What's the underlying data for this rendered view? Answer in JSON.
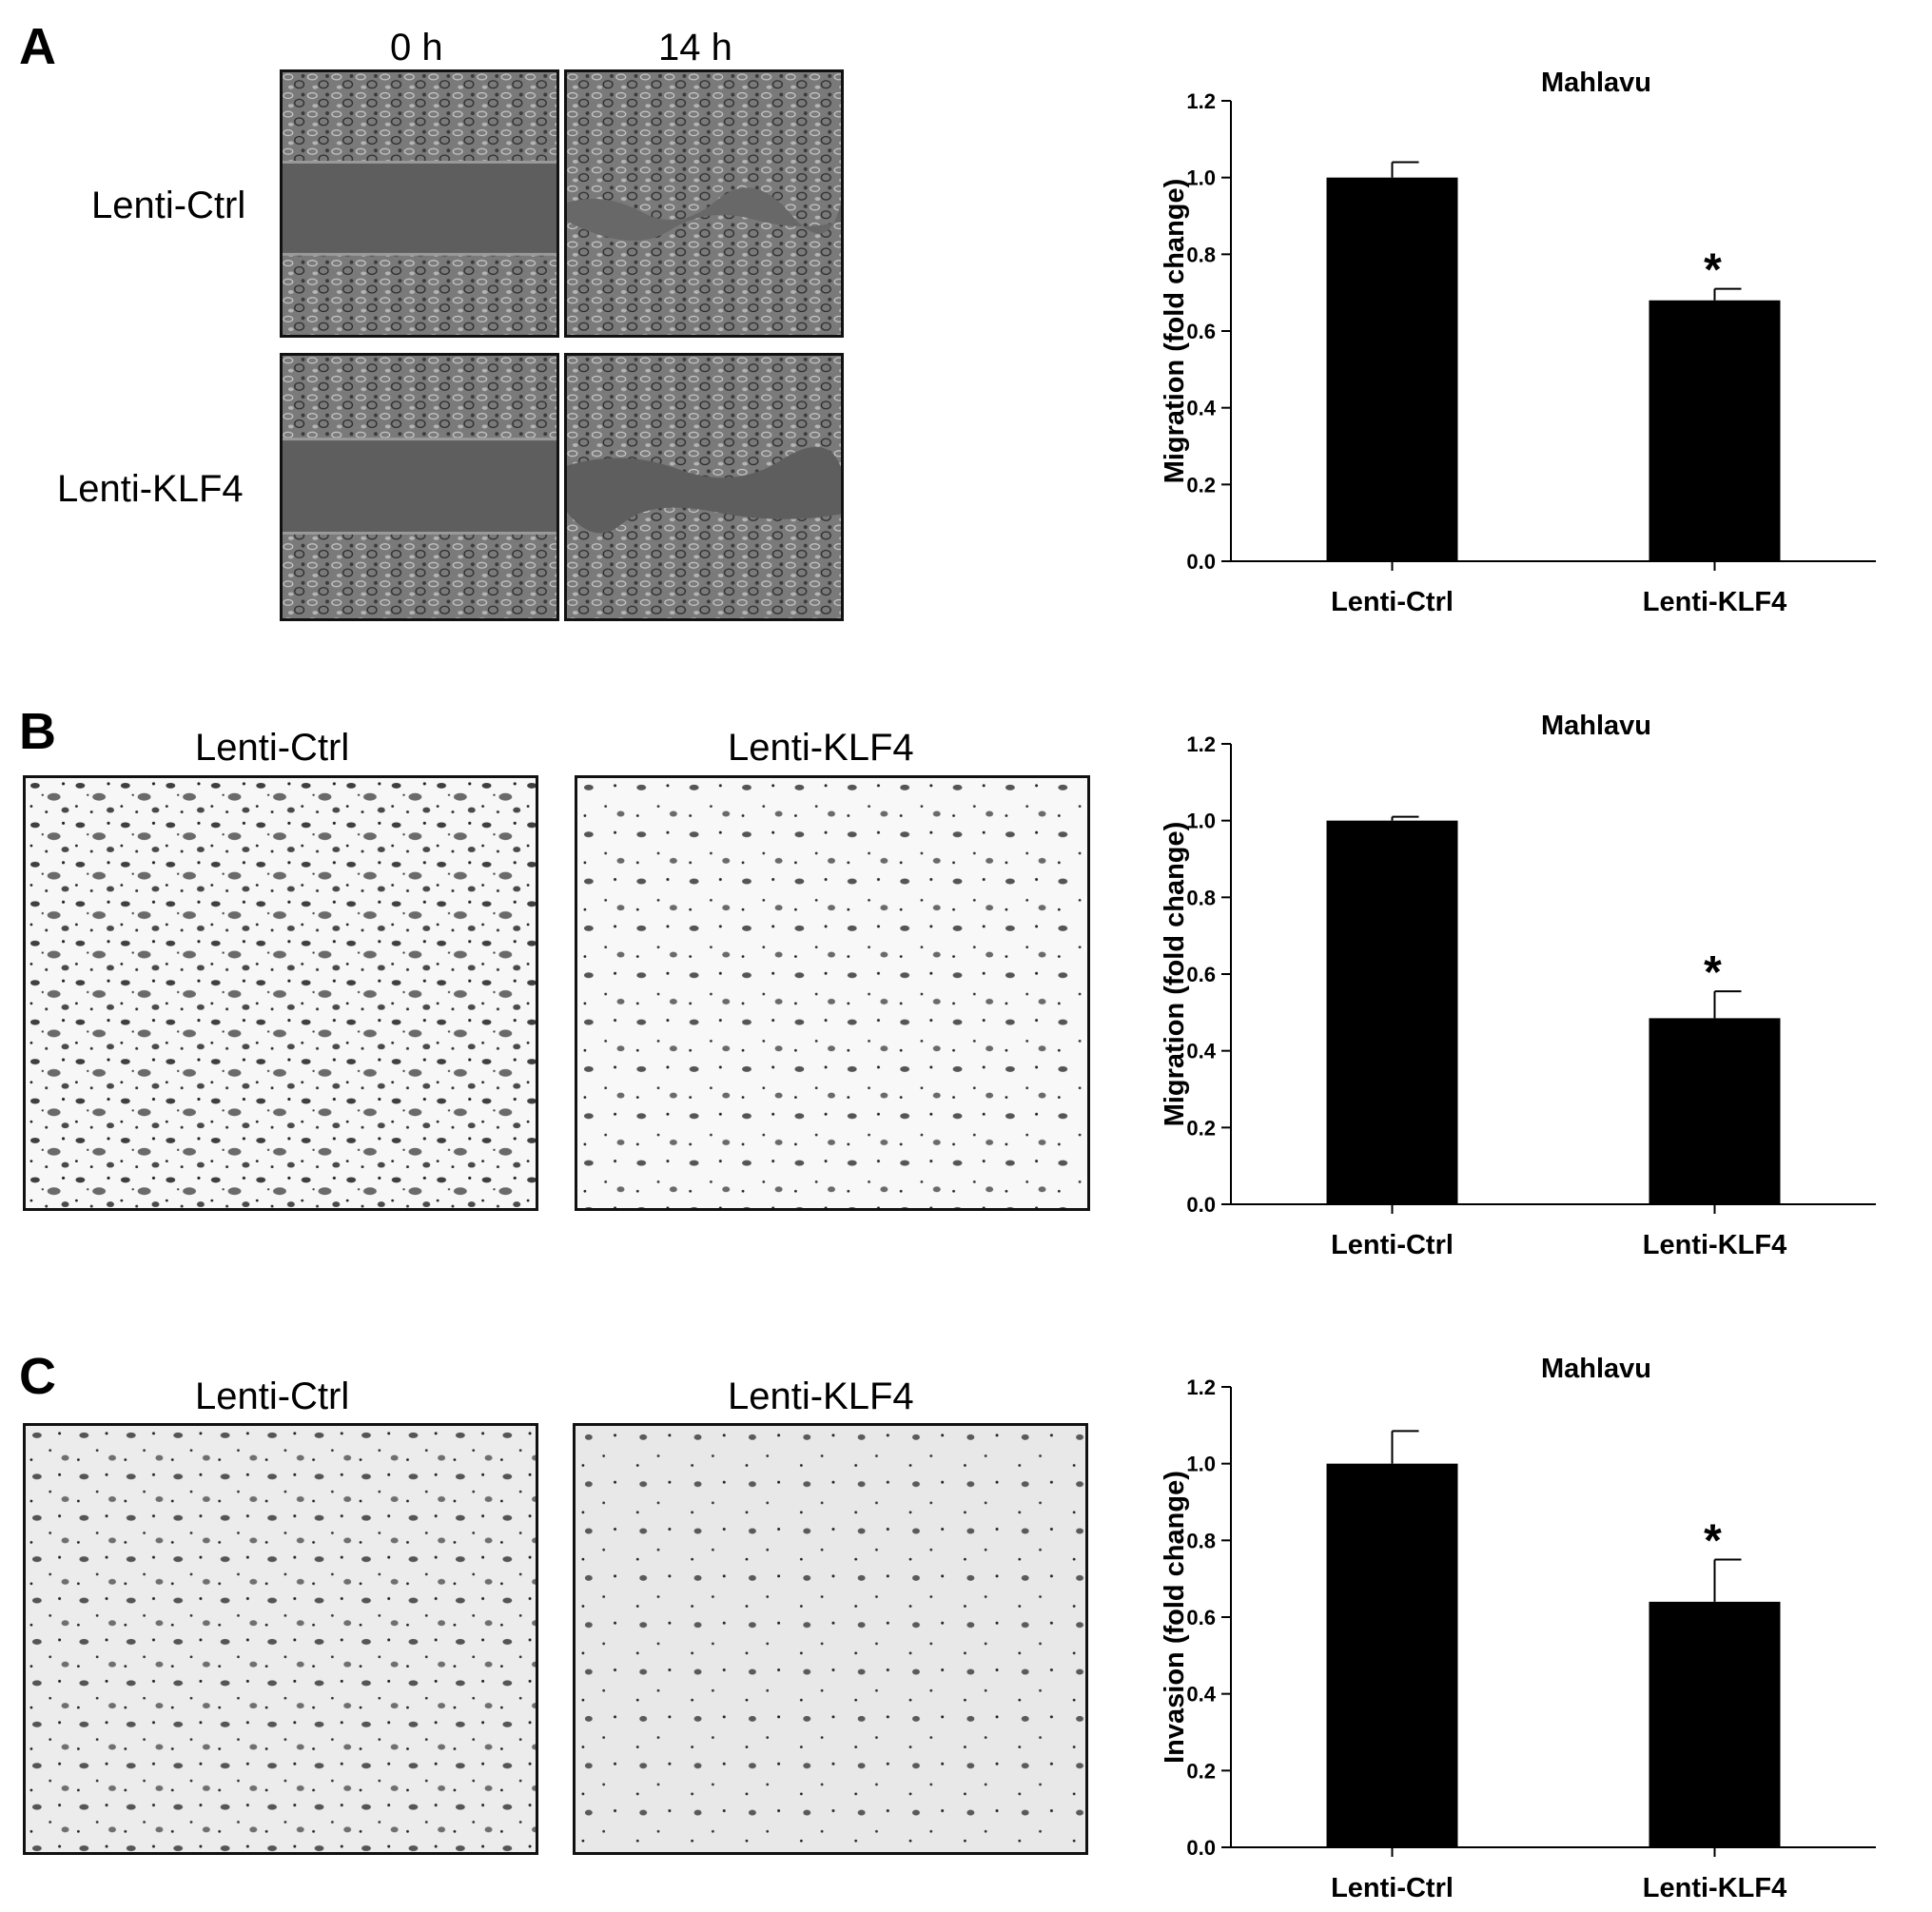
{
  "panels": {
    "A": {
      "letter": "A",
      "col_labels": [
        "0 h",
        "14 h"
      ],
      "row_labels": [
        "Lenti-Ctrl",
        "Lenti-KLF4"
      ]
    },
    "B": {
      "letter": "B",
      "image_labels": [
        "Lenti-Ctrl",
        "Lenti-KLF4"
      ]
    },
    "C": {
      "letter": "C",
      "image_labels": [
        "Lenti-Ctrl",
        "Lenti-KLF4"
      ]
    }
  },
  "chart_data": [
    {
      "type": "bar",
      "title": "Mahlavu",
      "xlabel": "",
      "ylabel": "Migration (fold change)",
      "categories": [
        "Lenti-Ctrl",
        "Lenti-KLF4"
      ],
      "values": [
        1.0,
        0.68
      ],
      "errors": [
        0.04,
        0.03
      ],
      "annotations": [
        "",
        "*"
      ],
      "ylim": [
        0.0,
        1.2
      ],
      "yticks": [
        "0.0",
        "0.2",
        "0.4",
        "0.6",
        "0.8",
        "1.0",
        "1.2"
      ],
      "bar_color": "#000000",
      "grid": false
    },
    {
      "type": "bar",
      "title": "Mahlavu",
      "xlabel": "",
      "ylabel": "Migration (fold change)",
      "categories": [
        "Lenti-Ctrl",
        "Lenti-KLF4"
      ],
      "values": [
        1.0,
        0.485
      ],
      "errors": [
        0.01,
        0.07
      ],
      "annotations": [
        "",
        "*"
      ],
      "ylim": [
        0.0,
        1.2
      ],
      "yticks": [
        "0.0",
        "0.2",
        "0.4",
        "0.6",
        "0.8",
        "1.0",
        "1.2"
      ],
      "bar_color": "#000000",
      "grid": false
    },
    {
      "type": "bar",
      "title": "Mahlavu",
      "xlabel": "",
      "ylabel": "Invasion (fold change)",
      "categories": [
        "Lenti-Ctrl",
        "Lenti-KLF4"
      ],
      "values": [
        1.0,
        0.64
      ],
      "errors": [
        0.085,
        0.11
      ],
      "annotations": [
        "",
        "*"
      ],
      "ylim": [
        0.0,
        1.2
      ],
      "yticks": [
        "0.0",
        "0.2",
        "0.4",
        "0.6",
        "0.8",
        "1.0",
        "1.2"
      ],
      "bar_color": "#000000",
      "grid": false
    }
  ]
}
